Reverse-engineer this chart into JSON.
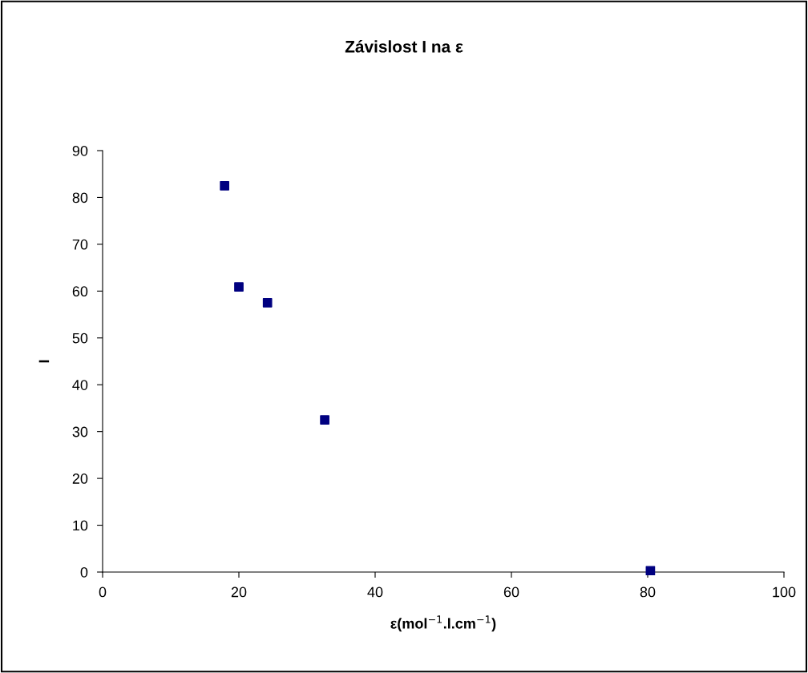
{
  "chart_data": {
    "type": "scatter",
    "title": "Závislost I na ε",
    "xlabel": "ε(mol$^{−1}$.l.cm$^{−1}$)",
    "ylabel": "I",
    "x": [
      17.9,
      20.0,
      24.2,
      32.6,
      80.4
    ],
    "series": [
      {
        "color": "#000080",
        "values": [
          82.5,
          60.9,
          57.5,
          32.5,
          0.3
        ]
      }
    ],
    "xlim": [
      0,
      100
    ],
    "xticks": [
      0,
      20,
      40,
      60,
      80,
      100
    ],
    "ylim": [
      0,
      90
    ],
    "yticks": [
      0,
      10,
      20,
      30,
      40,
      50,
      60,
      70,
      80,
      90
    ],
    "marker": "square",
    "grid": false,
    "legend": false
  }
}
